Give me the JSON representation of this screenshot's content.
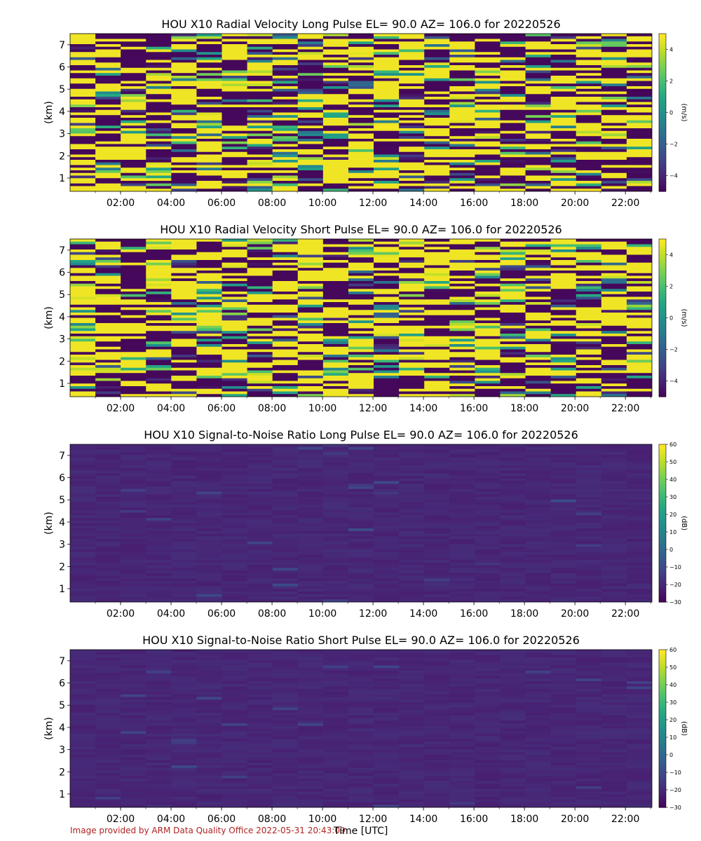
{
  "chart_data": [
    {
      "type": "heatmap",
      "title": "HOU X10 Radial Velocity Long Pulse EL= 90.0 AZ= 106.0 for 20220526",
      "ylabel": "(km)",
      "colorbar_label": "(m/s)",
      "colorbar_ticks": [
        4,
        2,
        0,
        -2,
        -4
      ],
      "clim": [
        -5,
        5
      ],
      "field": "velocity",
      "seed": 11,
      "ylim": [
        0.4,
        7.5
      ],
      "yticks": [
        1,
        2,
        3,
        4,
        5,
        6,
        7
      ],
      "xlim_hours": [
        0,
        23.05
      ],
      "xtick_labels": [
        "02:00",
        "04:00",
        "06:00",
        "08:00",
        "10:00",
        "12:00",
        "14:00",
        "16:00",
        "18:00",
        "20:00",
        "22:00"
      ],
      "xtick_hours": [
        2,
        4,
        6,
        8,
        10,
        12,
        14,
        16,
        18,
        20,
        22
      ],
      "colormap": "viridis"
    },
    {
      "type": "heatmap",
      "title": "HOU X10 Radial Velocity Short Pulse EL= 90.0 AZ= 106.0 for 20220526",
      "ylabel": "(km)",
      "colorbar_label": "(m/s)",
      "colorbar_ticks": [
        4,
        2,
        0,
        -2,
        -4
      ],
      "clim": [
        -5,
        5
      ],
      "field": "velocity",
      "seed": 29,
      "ylim": [
        0.4,
        7.5
      ],
      "yticks": [
        1,
        2,
        3,
        4,
        5,
        6,
        7
      ],
      "xlim_hours": [
        0,
        23.05
      ],
      "xtick_labels": [
        "02:00",
        "04:00",
        "06:00",
        "08:00",
        "10:00",
        "12:00",
        "14:00",
        "16:00",
        "18:00",
        "20:00",
        "22:00"
      ],
      "xtick_hours": [
        2,
        4,
        6,
        8,
        10,
        12,
        14,
        16,
        18,
        20,
        22
      ],
      "colormap": "viridis"
    },
    {
      "type": "heatmap",
      "title": "HOU X10 Signal-to-Noise Ratio Long Pulse EL= 90.0 AZ= 106.0 for 20220526",
      "ylabel": "(km)",
      "colorbar_label": "(dB)",
      "colorbar_ticks": [
        60,
        50,
        40,
        30,
        20,
        10,
        0,
        -10,
        -20,
        -30
      ],
      "clim": [
        -30,
        60
      ],
      "field": "snr",
      "seed": 47,
      "ylim": [
        0.4,
        7.5
      ],
      "yticks": [
        1,
        2,
        3,
        4,
        5,
        6,
        7
      ],
      "xlim_hours": [
        0,
        23.05
      ],
      "xtick_labels": [
        "02:00",
        "04:00",
        "06:00",
        "08:00",
        "10:00",
        "12:00",
        "14:00",
        "16:00",
        "18:00",
        "20:00",
        "22:00"
      ],
      "xtick_hours": [
        2,
        4,
        6,
        8,
        10,
        12,
        14,
        16,
        18,
        20,
        22
      ],
      "colormap": "viridis"
    },
    {
      "type": "heatmap",
      "title": "HOU X10 Signal-to-Noise Ratio Short Pulse EL= 90.0 AZ= 106.0 for 20220526",
      "ylabel": "(km)",
      "colorbar_label": "(dB)",
      "colorbar_ticks": [
        60,
        50,
        40,
        30,
        20,
        10,
        0,
        -10,
        -20,
        -30
      ],
      "clim": [
        -30,
        60
      ],
      "field": "snr",
      "seed": 83,
      "ylim": [
        0.4,
        7.5
      ],
      "yticks": [
        1,
        2,
        3,
        4,
        5,
        6,
        7
      ],
      "xlim_hours": [
        0,
        23.05
      ],
      "xtick_labels": [
        "02:00",
        "04:00",
        "06:00",
        "08:00",
        "10:00",
        "12:00",
        "14:00",
        "16:00",
        "18:00",
        "20:00",
        "22:00"
      ],
      "xtick_hours": [
        2,
        4,
        6,
        8,
        10,
        12,
        14,
        16,
        18,
        20,
        22
      ],
      "colormap": "viridis"
    }
  ],
  "xlabel": "Time [UTC]",
  "footer": "Image provided by ARM Data Quality Office 2022-05-31 20:43:09"
}
